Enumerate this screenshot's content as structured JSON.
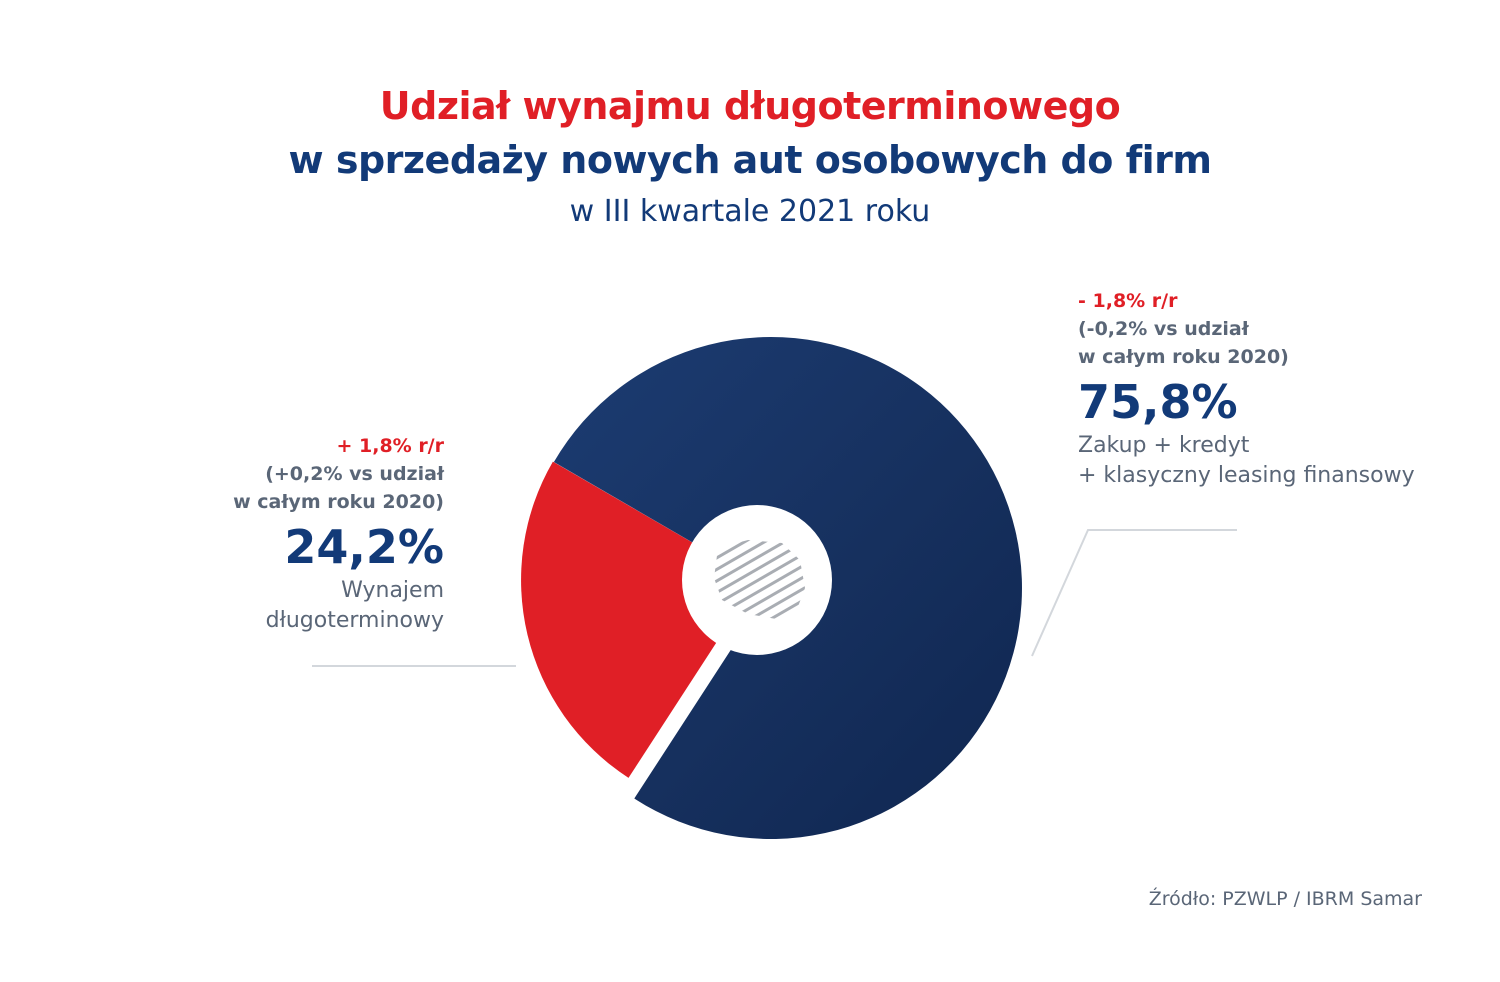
{
  "title_line1": "Udział wynajmu długoterminowego",
  "title_line2": "w sprzedaży nowych aut osobowych do firm",
  "subtitle": "w III kwartale 2021 roku",
  "source": "Źródło: PZWLP / IBRM Samar",
  "segments": [
    {
      "change": "+ 1,8% r/r",
      "note_line1": "(+0,2% vs udział",
      "note_line2": "w całym roku 2020)",
      "percent_label": "24,2%",
      "desc_line1": "Wynajem",
      "desc_line2": "długoterminowy"
    },
    {
      "change": "- 1,8% r/r",
      "note_line1": "(-0,2% vs udział",
      "note_line2": "w całym roku 2020)",
      "percent_label": "75,8%",
      "desc_line1": "Zakup + kredyt",
      "desc_line2": "+ klasyczny leasing finansowy"
    }
  ],
  "colors": {
    "red": "#e01f26",
    "navy": "#123a78",
    "gray_text": "#5a6677"
  },
  "chart_data": {
    "type": "pie",
    "donut": true,
    "categories": [
      "Wynajem długoterminowy",
      "Zakup + kredyt + klasyczny leasing finansowy"
    ],
    "values": [
      24.2,
      75.8
    ],
    "value_labels": [
      "24,2%",
      "75,8%"
    ],
    "colors": [
      "#e01f26",
      "#1b3a6e"
    ],
    "title": "Udział wynajmu długoterminowego w sprzedaży nowych aut osobowych do firm",
    "subtitle": "w III kwartale 2021 roku"
  }
}
